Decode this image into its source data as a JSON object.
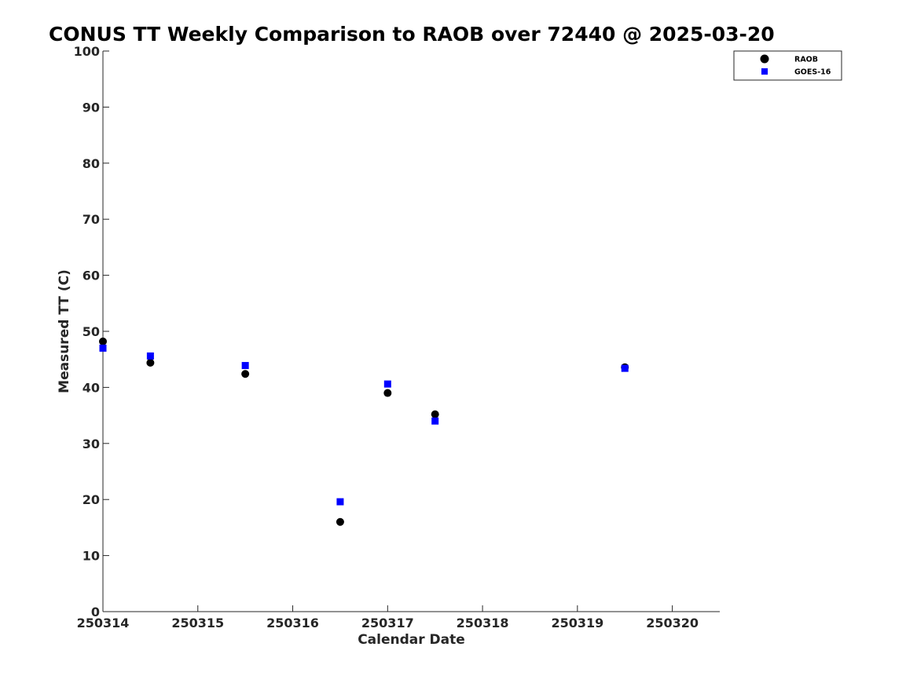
{
  "chart_data": {
    "type": "scatter",
    "title": "CONUS TT Weekly Comparison to RAOB over 72440 @ 2025-03-20",
    "xlabel": "Calendar Date",
    "ylabel": "Measured TT (C)",
    "xlim": [
      "250314",
      "250320.5"
    ],
    "ylim": [
      0,
      100
    ],
    "x_ticks": [
      "250314",
      "250315",
      "250316",
      "250317",
      "250318",
      "250319",
      "250320"
    ],
    "y_ticks": [
      0,
      10,
      20,
      30,
      40,
      50,
      60,
      70,
      80,
      90,
      100
    ],
    "grid": false,
    "legend_position": "top-right",
    "series": [
      {
        "name": "RAOB",
        "marker": "circle",
        "color": "#000000",
        "points": [
          {
            "x": "250314.0",
            "y": 48.2
          },
          {
            "x": "250314.5",
            "y": 44.4
          },
          {
            "x": "250315.5",
            "y": 42.4
          },
          {
            "x": "250316.5",
            "y": 16.0
          },
          {
            "x": "250317.0",
            "y": 39.0
          },
          {
            "x": "250317.5",
            "y": 35.2
          },
          {
            "x": "250319.5",
            "y": 43.6
          }
        ]
      },
      {
        "name": "GOES-16",
        "marker": "square",
        "color": "#0000ff",
        "points": [
          {
            "x": "250314.0",
            "y": 47.0
          },
          {
            "x": "250314.5",
            "y": 45.6
          },
          {
            "x": "250315.5",
            "y": 43.9
          },
          {
            "x": "250316.5",
            "y": 19.6
          },
          {
            "x": "250317.0",
            "y": 40.6
          },
          {
            "x": "250317.5",
            "y": 34.0
          },
          {
            "x": "250319.5",
            "y": 43.4
          }
        ]
      }
    ]
  }
}
